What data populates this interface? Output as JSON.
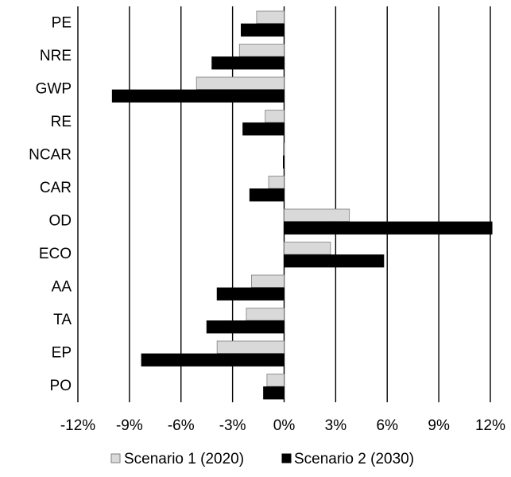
{
  "chart_data": {
    "type": "bar",
    "orientation": "horizontal",
    "categories": [
      "PE",
      "NRE",
      "GWP",
      "RE",
      "NCAR",
      "CAR",
      "OD",
      "ECO",
      "AA",
      "TA",
      "EP",
      "PO"
    ],
    "series": [
      {
        "name": "Scenario 1 (2020)",
        "color": "#d9d9d9",
        "values": [
          -1.6,
          -2.6,
          -5.1,
          -1.1,
          -0.05,
          -0.9,
          3.8,
          2.7,
          -1.9,
          -2.2,
          -3.9,
          -1.0
        ]
      },
      {
        "name": "Scenario 2 (2030)",
        "color": "#000000",
        "values": [
          -2.5,
          -4.2,
          -10.0,
          -2.4,
          -0.05,
          -2.0,
          12.1,
          5.8,
          -3.9,
          -4.5,
          -8.3,
          -1.2
        ]
      }
    ],
    "xlim": [
      -12,
      12
    ],
    "xticks": [
      -12,
      -9,
      -6,
      -3,
      0,
      3,
      6,
      9,
      12
    ],
    "xtick_labels": [
      "-12%",
      "-9%",
      "-6%",
      "-3%",
      "0%",
      "3%",
      "6%",
      "9%",
      "12%"
    ],
    "grid": "vertical",
    "legend": "bottom"
  }
}
